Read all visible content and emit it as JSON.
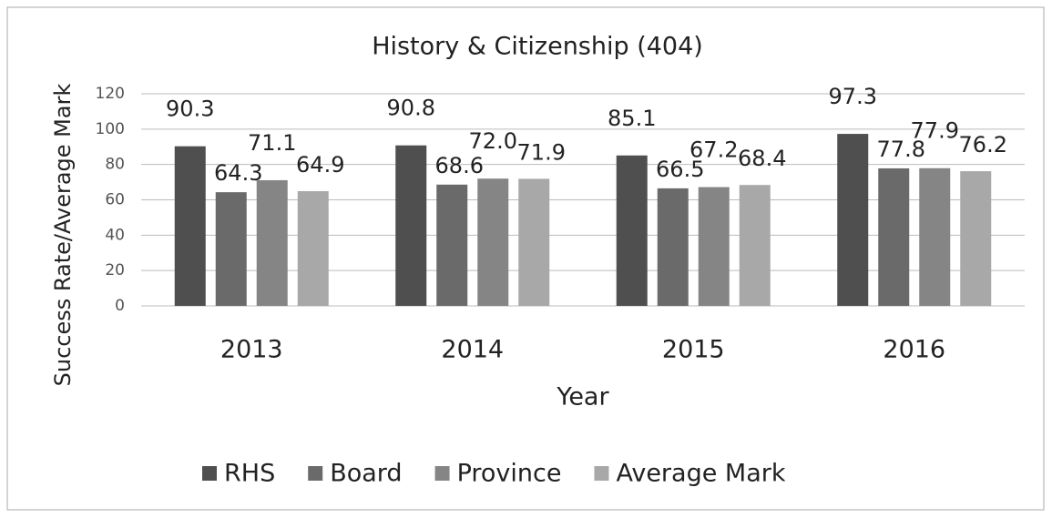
{
  "chart_data": {
    "type": "bar",
    "title": "History & Citizenship (404)",
    "x_label": "Year",
    "y_label": "Success  Rate/Average Mark",
    "categories": [
      "2013",
      "2014",
      "2015",
      "2016"
    ],
    "series": [
      {
        "name": "RHS",
        "color": "#4f4f4f",
        "values": [
          90.3,
          90.8,
          85.1,
          97.3
        ],
        "value_labels": [
          "90.3",
          "90.8",
          "85.1",
          "97.3"
        ]
      },
      {
        "name": "Board",
        "color": "#6a6a6a",
        "values": [
          64.3,
          68.6,
          66.5,
          77.8
        ],
        "value_labels": [
          "64.3",
          "68.6",
          "66.5",
          "77.8"
        ]
      },
      {
        "name": "Province",
        "color": "#858585",
        "values": [
          71.1,
          72.0,
          67.2,
          77.9
        ],
        "value_labels": [
          "71.1",
          "72.0",
          "67.2",
          "77.9"
        ]
      },
      {
        "name": "Average Mark",
        "color": "#a8a8a8",
        "values": [
          64.9,
          71.9,
          68.4,
          76.2
        ],
        "value_labels": [
          "64.9",
          "71.9",
          "68.4",
          "76.2"
        ]
      }
    ],
    "ylim": [
      0,
      120
    ],
    "yticks": [
      0,
      20,
      40,
      60,
      80,
      100,
      120
    ],
    "grid": true,
    "legend": "bottom"
  }
}
